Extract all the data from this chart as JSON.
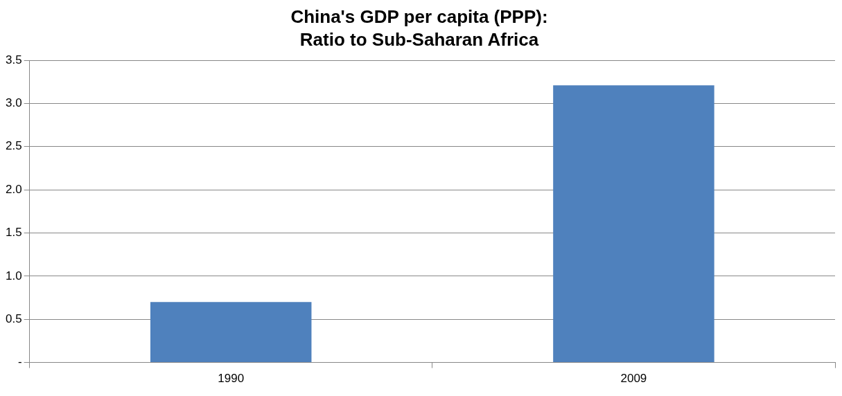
{
  "chart_data": {
    "type": "bar",
    "title": "China's GDP per capita (PPP):\nRatio to Sub-Saharan Africa",
    "categories": [
      "1990",
      "2009"
    ],
    "values": [
      0.7,
      3.21
    ],
    "color": "#4f81bd",
    "ylim": [
      0,
      3.5
    ],
    "yticks": [
      {
        "value": 0,
        "label": "-"
      },
      {
        "value": 0.5,
        "label": "0.5"
      },
      {
        "value": 1,
        "label": "1.0"
      },
      {
        "value": 1.5,
        "label": "1.5"
      },
      {
        "value": 2,
        "label": "2.0"
      },
      {
        "value": 2.5,
        "label": "2.5"
      },
      {
        "value": 3,
        "label": "3.0"
      },
      {
        "value": 3.5,
        "label": "3.5"
      }
    ],
    "grid": "y",
    "legend": false
  }
}
